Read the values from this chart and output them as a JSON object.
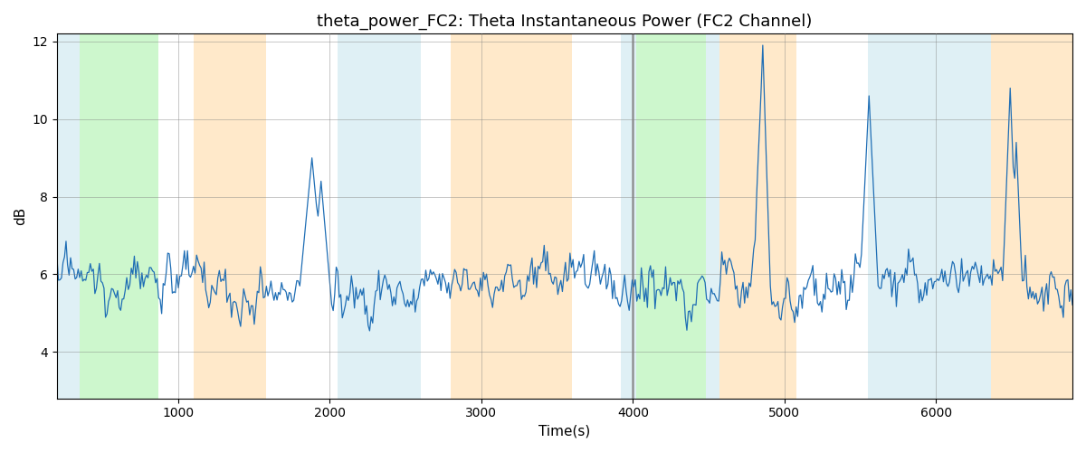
{
  "title": "theta_power_FC2: Theta Instantaneous Power (FC2 Channel)",
  "xlabel": "Time(s)",
  "ylabel": "dB",
  "ylim": [
    2.8,
    12.2
  ],
  "xlim": [
    200,
    6900
  ],
  "line_color": "#1f6eb5",
  "line_width": 0.9,
  "bg_bands": [
    {
      "start": 200,
      "end": 350,
      "color": "#add8e6",
      "alpha": 0.38
    },
    {
      "start": 350,
      "end": 870,
      "color": "#90ee90",
      "alpha": 0.45
    },
    {
      "start": 1100,
      "end": 1580,
      "color": "#ffd8a0",
      "alpha": 0.55
    },
    {
      "start": 2050,
      "end": 2600,
      "color": "#add8e6",
      "alpha": 0.38
    },
    {
      "start": 2800,
      "end": 3600,
      "color": "#ffd8a0",
      "alpha": 0.55
    },
    {
      "start": 3920,
      "end": 4020,
      "color": "#add8e6",
      "alpha": 0.38
    },
    {
      "start": 4020,
      "end": 4480,
      "color": "#90ee90",
      "alpha": 0.45
    },
    {
      "start": 4480,
      "end": 4570,
      "color": "#add8e6",
      "alpha": 0.38
    },
    {
      "start": 4570,
      "end": 5080,
      "color": "#ffd8a0",
      "alpha": 0.55
    },
    {
      "start": 5550,
      "end": 6360,
      "color": "#add8e6",
      "alpha": 0.38
    },
    {
      "start": 6360,
      "end": 6900,
      "color": "#ffd8a0",
      "alpha": 0.55
    }
  ],
  "vline": {
    "x": 4000,
    "color": "#888888",
    "lw": 1.8
  },
  "seed": 12345,
  "t_start": 200,
  "t_end": 6900,
  "n_points": 670,
  "base_mean": 5.7,
  "noise_std": 0.55
}
